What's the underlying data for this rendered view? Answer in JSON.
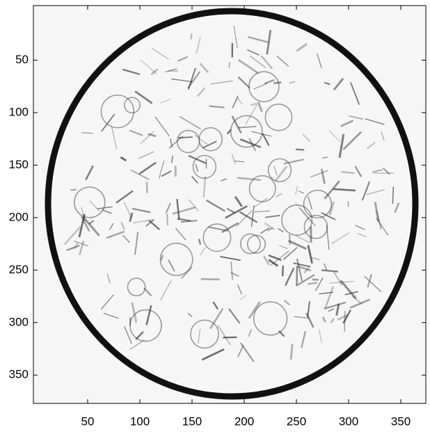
{
  "chart_data": {
    "type": "image",
    "xlim": [
      -2,
      374
    ],
    "ylim": [
      -2,
      377
    ],
    "y_direction": "reverse",
    "xticks": [
      50,
      100,
      150,
      200,
      250,
      300,
      350
    ],
    "yticks": [
      50,
      100,
      150,
      200,
      250,
      300,
      350
    ]
  }
}
